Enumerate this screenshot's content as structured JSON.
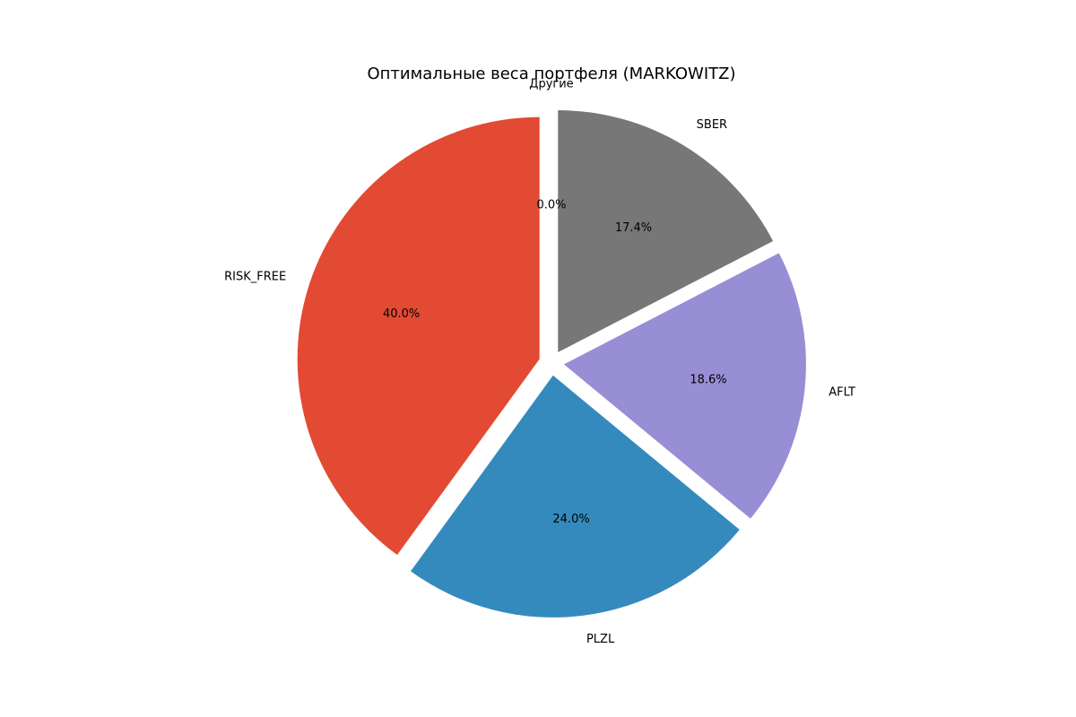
{
  "chart_data": {
    "type": "pie",
    "title": "Оптимальные веса портфеля (MARKOWITZ)",
    "slices": [
      {
        "label": "Другие",
        "value": 0.0,
        "pct_label": "0.0%",
        "color": "#8EBA42"
      },
      {
        "label": "RISK_FREE",
        "value": 40.0,
        "pct_label": "40.0%",
        "color": "#E24A33"
      },
      {
        "label": "PLZL",
        "value": 24.0,
        "pct_label": "24.0%",
        "color": "#348ABD"
      },
      {
        "label": "AFLT",
        "value": 18.6,
        "pct_label": "18.6%",
        "color": "#988ED5"
      },
      {
        "label": "SBER",
        "value": 17.4,
        "pct_label": "17.4%",
        "color": "#777777"
      }
    ],
    "start_angle_deg": 90,
    "direction": "counterclockwise",
    "exploded": true
  }
}
